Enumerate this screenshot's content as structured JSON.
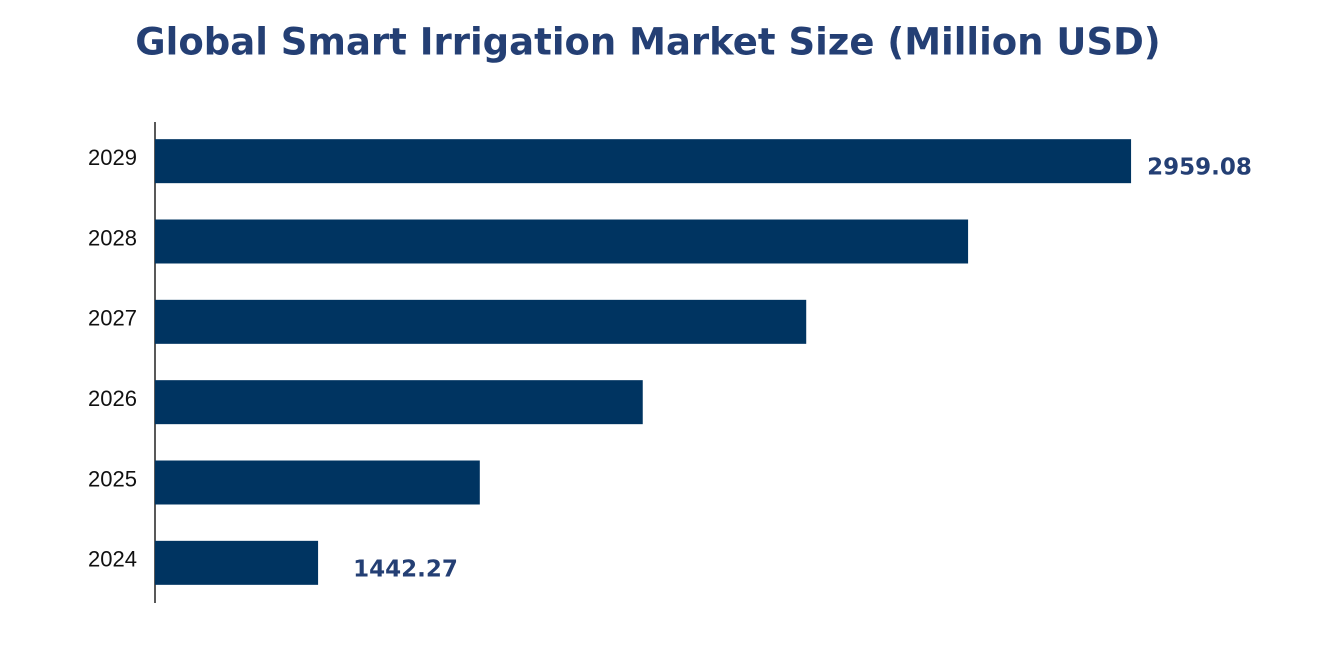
{
  "chart_data": {
    "type": "barh",
    "title": "Global Smart Irrigation Market Size (Million USD)",
    "categories": [
      "2024",
      "2025",
      "2026",
      "2027",
      "2028",
      "2029"
    ],
    "values": [
      1442.27,
      1744,
      2048,
      2353,
      2655,
      2959.08
    ],
    "value_labels": [
      "1442.27",
      null,
      null,
      null,
      null,
      "2959.08"
    ],
    "color": "#003461",
    "xlim": [
      1138,
      3000
    ]
  }
}
